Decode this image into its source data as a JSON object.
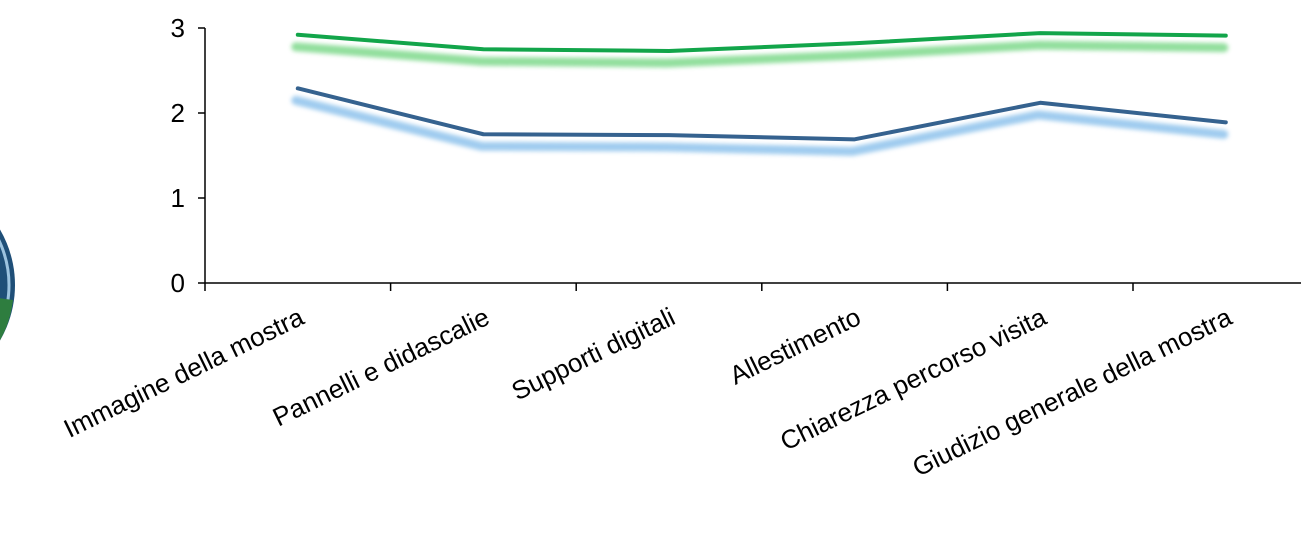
{
  "chart_data": {
    "type": "line",
    "title": "",
    "xlabel": "",
    "ylabel": "",
    "categories": [
      "Immagine della mostra",
      "Pannelli e didascalie",
      "Supporti digitali",
      "Allestimento",
      "Chiarezza percorso visita",
      "Giudizio generale della mostra"
    ],
    "ylim": [
      0,
      3
    ],
    "yticks": [
      "0",
      "1",
      "2",
      "3"
    ],
    "grid": false,
    "legend": "none",
    "series": [
      {
        "values": [
          2.92,
          2.75,
          2.73,
          2.82,
          2.94,
          2.91
        ],
        "color": "#12a54a",
        "glow_color": "#7fd98c"
      },
      {
        "values": [
          2.29,
          1.75,
          1.74,
          1.69,
          2.12,
          1.89
        ],
        "color": "#35628f",
        "glow_color": "#8fc3ec"
      }
    ]
  },
  "decoration": {
    "left_badge": {
      "colors": [
        "#1f4f78",
        "#2e7d3f"
      ]
    }
  }
}
